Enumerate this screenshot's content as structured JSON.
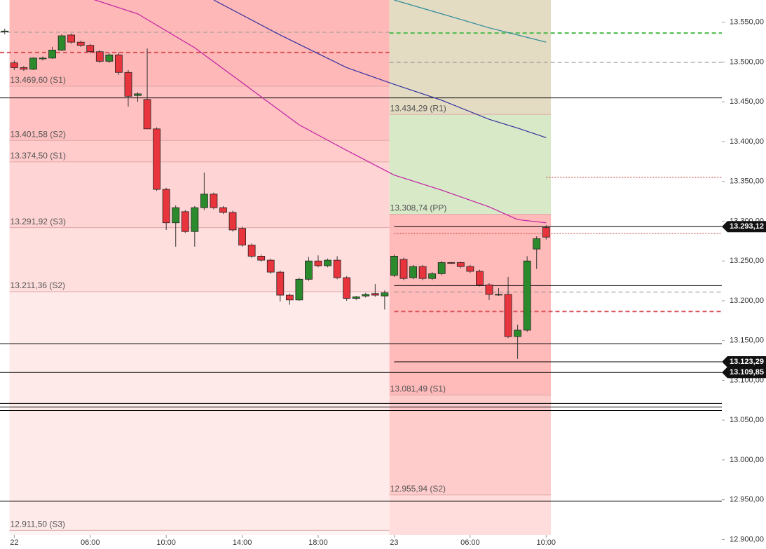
{
  "chart_data": {
    "type": "candlestick",
    "xlim": [
      -1.5,
      74.5
    ],
    "ylim": [
      12888,
      13578
    ],
    "xticks": [
      {
        "value": 0,
        "label": "22"
      },
      {
        "value": 8,
        "label": "06:00"
      },
      {
        "value": 16,
        "label": "10:00"
      },
      {
        "value": 24,
        "label": "14:00"
      },
      {
        "value": 32,
        "label": "18:00"
      },
      {
        "value": 40,
        "label": "23"
      },
      {
        "value": 48,
        "label": "06:00"
      },
      {
        "value": 56,
        "label": "10:00"
      }
    ],
    "yticks": [
      {
        "value": 13550,
        "label": "13.550,00"
      },
      {
        "value": 13500,
        "label": "13.500,00"
      },
      {
        "value": 13450,
        "label": "13.450,00"
      },
      {
        "value": 13400,
        "label": "13.400,00"
      },
      {
        "value": 13350,
        "label": "13.350,00"
      },
      {
        "value": 13300,
        "label": "13.300,00"
      },
      {
        "value": 13250,
        "label": "13.250,00"
      },
      {
        "value": 13200,
        "label": "13.200,00"
      },
      {
        "value": 13150,
        "label": "13.150,00"
      },
      {
        "value": 13100,
        "label": "13.100,00"
      },
      {
        "value": 13050,
        "label": "13.050,00"
      },
      {
        "value": 13000,
        "label": "13.000,00"
      },
      {
        "value": 12950,
        "label": "12.950,00"
      },
      {
        "value": 12900,
        "label": "12.900,00"
      }
    ],
    "up_color": "#2b8a2b",
    "down_color": "#e8343c",
    "sessions": [
      {
        "start": -0.5,
        "end": 39.5,
        "top_color": "#ffb8b8"
      },
      {
        "start": 39.5,
        "end": 56.5,
        "top_color": "#e3dcc3"
      }
    ],
    "pivots": [
      {
        "label": "13.469,60 (S1)",
        "value": 13469.6,
        "session": 0,
        "color": "#ffc1c1"
      },
      {
        "label": "13.401,58 (S2)",
        "value": 13401.58,
        "session": 0,
        "color": "#ffcbcb"
      },
      {
        "label": "13.374,50 (S1)",
        "value": 13374.5,
        "session": 0,
        "color": "#ffd4d4"
      },
      {
        "label": "13.291,92 (S3)",
        "value": 13291.92,
        "session": 0,
        "color": "#ffdede"
      },
      {
        "label": "13.211,36 (S2)",
        "value": 13211.36,
        "session": 0,
        "color": "#ffeaea"
      },
      {
        "label": "12.911,50 (S3)",
        "value": 12911.5,
        "session": 0,
        "color": "#fff4f4"
      },
      {
        "label": "13.434,29 (R1)",
        "value": 13434.29,
        "session": 1,
        "color": "#d8e9c8"
      },
      {
        "label": "13.308,74 (PP)",
        "value": 13308.74,
        "session": 1,
        "color": "#ffbaba"
      },
      {
        "label": "13.081,49 (S1)",
        "value": 13081.49,
        "session": 1,
        "color": "#ffcccc"
      },
      {
        "label": "12.955,94 (S2)",
        "value": 12955.94,
        "session": 1,
        "color": "#ffdddd"
      }
    ],
    "levels": [
      {
        "value": 13455,
        "color": "#000000",
        "style": "solid",
        "width": 1,
        "x": [
          -1.5,
          74.5
        ]
      },
      {
        "value": 13537.5,
        "color": "#999999",
        "style": "dashed",
        "width": 1,
        "x": [
          -1.5,
          39.5
        ]
      },
      {
        "value": 13512,
        "color": "#d9535b",
        "style": "dashed",
        "width": 2,
        "x": [
          -1.5,
          39.5
        ]
      },
      {
        "value": 13536.5,
        "color": "#4cbb4c",
        "style": "dashed",
        "width": 2,
        "x": [
          39.5,
          74.5
        ]
      },
      {
        "value": 13499.6,
        "color": "#888888",
        "style": "dashed",
        "width": 1,
        "x": [
          39.5,
          74.5
        ]
      },
      {
        "value": 13355,
        "color": "#c0392b",
        "style": "dotted",
        "width": 1,
        "x": [
          56,
          74.5
        ]
      },
      {
        "value": 13293.12,
        "label": "13.293,12",
        "color": "#000000",
        "style": "solid",
        "width": 1,
        "x": [
          40,
          74.5
        ]
      },
      {
        "value": 13284.5,
        "color": "#c0392b",
        "style": "dotted",
        "width": 1,
        "x": [
          40,
          74.5
        ]
      },
      {
        "value": 13219,
        "color": "#000000",
        "style": "solid",
        "width": 1,
        "x": [
          40,
          74.5
        ]
      },
      {
        "value": 13211,
        "color": "#888888",
        "style": "dashed",
        "width": 1,
        "x": [
          40,
          74.5
        ]
      },
      {
        "value": 13186.5,
        "color": "#d9535b",
        "style": "dashed",
        "width": 2,
        "x": [
          40,
          74.5
        ]
      },
      {
        "value": 13146,
        "color": "#000000",
        "style": "solid",
        "width": 1,
        "x": [
          -1.5,
          74.5
        ]
      },
      {
        "value": 13123.29,
        "label": "13.123,29",
        "color": "#000000",
        "style": "solid",
        "width": 1,
        "x": [
          40,
          74.5
        ]
      },
      {
        "value": 13109.85,
        "label": "13.109,85",
        "color": "#000000",
        "style": "solid",
        "width": 1,
        "x": [
          -1.5,
          74.5
        ]
      },
      {
        "value": 13071,
        "color": "#000000",
        "style": "solid",
        "width": 1,
        "x": [
          -1.5,
          74.5
        ]
      },
      {
        "value": 13066.5,
        "color": "#000000",
        "style": "solid",
        "width": 1,
        "x": [
          -1.5,
          74.5
        ]
      },
      {
        "value": 13062,
        "color": "#000000",
        "style": "solid",
        "width": 1,
        "x": [
          -1.5,
          74.5
        ]
      },
      {
        "value": 12948,
        "color": "#000000",
        "style": "solid",
        "width": 1,
        "x": [
          -1.5,
          74.5
        ]
      }
    ],
    "series": [
      {
        "color": "#c21fa3",
        "x": [
          8,
          13,
          19,
          24,
          30,
          35,
          40,
          45,
          50,
          53,
          56
        ],
        "values": [
          13580,
          13560.6,
          13518,
          13474,
          13421,
          13389,
          13358,
          13339,
          13318,
          13302,
          13298
        ]
      },
      {
        "color": "#33309e",
        "x": [
          21,
          28,
          35,
          40,
          45,
          50,
          53,
          56
        ],
        "values": [
          13578,
          13534,
          13493,
          13472,
          13452,
          13428,
          13417,
          13405
        ]
      },
      {
        "color": "#2a8a9a",
        "x": [
          40,
          45,
          50,
          56
        ],
        "values": [
          13578,
          13560.6,
          13543,
          13525
        ]
      }
    ],
    "candles": {
      "x": [
        -1,
        0,
        1,
        2,
        3,
        4,
        5,
        6,
        7,
        8,
        9,
        10,
        11,
        12,
        13,
        14,
        15,
        16,
        17,
        18,
        19,
        20,
        21,
        22,
        23,
        24,
        25,
        26,
        27,
        28,
        29,
        30,
        31,
        32,
        33,
        34,
        35,
        36,
        37,
        38,
        39,
        40,
        41,
        42,
        43,
        44,
        45,
        46,
        47,
        48,
        49,
        50,
        51,
        52,
        53,
        54,
        55,
        56
      ],
      "open": [
        13538,
        13499,
        13493,
        13491,
        13504,
        13505,
        13515,
        13534,
        13525,
        13521,
        13513,
        13501,
        13509,
        13487,
        13458,
        13453,
        13416,
        13340,
        13298,
        13312,
        13287,
        13317,
        13334,
        13317,
        13311,
        13291,
        13270,
        13256,
        13251,
        13236,
        13207,
        13201,
        13227,
        13250,
        13244,
        13251,
        13229,
        13203,
        13206,
        13209,
        13206,
        13232,
        13252,
        13229,
        13243,
        13228,
        13234,
        13248,
        13248,
        13243,
        13237,
        13220,
        13208,
        13208,
        13155,
        13163,
        13265,
        13292
      ],
      "high": [
        13542,
        13502,
        13495,
        13506,
        13507,
        13519,
        13535,
        13536,
        13527,
        13523,
        13515,
        13511,
        13512,
        13490,
        13462,
        13517,
        13418,
        13342,
        13320,
        13314,
        13319,
        13361,
        13336,
        13319,
        13313,
        13293,
        13272,
        13258,
        13253,
        13238,
        13209,
        13229,
        13255,
        13257,
        13253,
        13256,
        13231,
        13206,
        13210,
        13221,
        13213,
        13258,
        13254,
        13245,
        13245,
        13236,
        13250,
        13249,
        13249,
        13245,
        13239,
        13222,
        13216,
        13230,
        13170,
        13256,
        13281,
        13295
      ],
      "low": [
        13535,
        13490,
        13489,
        13490,
        13502,
        13504,
        13514,
        13523,
        13519,
        13511,
        13499,
        13499,
        13484,
        13444,
        13450,
        13438,
        13338,
        13289,
        13268,
        13285,
        13268,
        13314,
        13315,
        13309,
        13287,
        13268,
        13254,
        13249,
        13234,
        13199,
        13195,
        13200,
        13225,
        13242,
        13242,
        13227,
        13200,
        13201,
        13204,
        13205,
        13189,
        13230,
        13226,
        13227,
        13226,
        13226,
        13232,
        13246,
        13241,
        13235,
        13218,
        13201,
        13206,
        13153,
        13127,
        13161,
        13240,
        13277
      ],
      "close": [
        13539,
        13493,
        13491,
        13505,
        13505,
        13515,
        13533,
        13525,
        13521,
        13513,
        13501,
        13509,
        13487,
        13457,
        13460,
        13416,
        13340,
        13298,
        13317,
        13287,
        13317,
        13334,
        13317,
        13311,
        13289,
        13270,
        13256,
        13251,
        13236,
        13207,
        13201,
        13227,
        13250,
        13244,
        13251,
        13229,
        13203,
        13205,
        13208,
        13207,
        13210,
        13256,
        13228,
        13243,
        13228,
        13234,
        13248,
        13247,
        13243,
        13237,
        13220,
        13208,
        13208,
        13155,
        13163,
        13250,
        13278,
        13280
      ]
    }
  }
}
